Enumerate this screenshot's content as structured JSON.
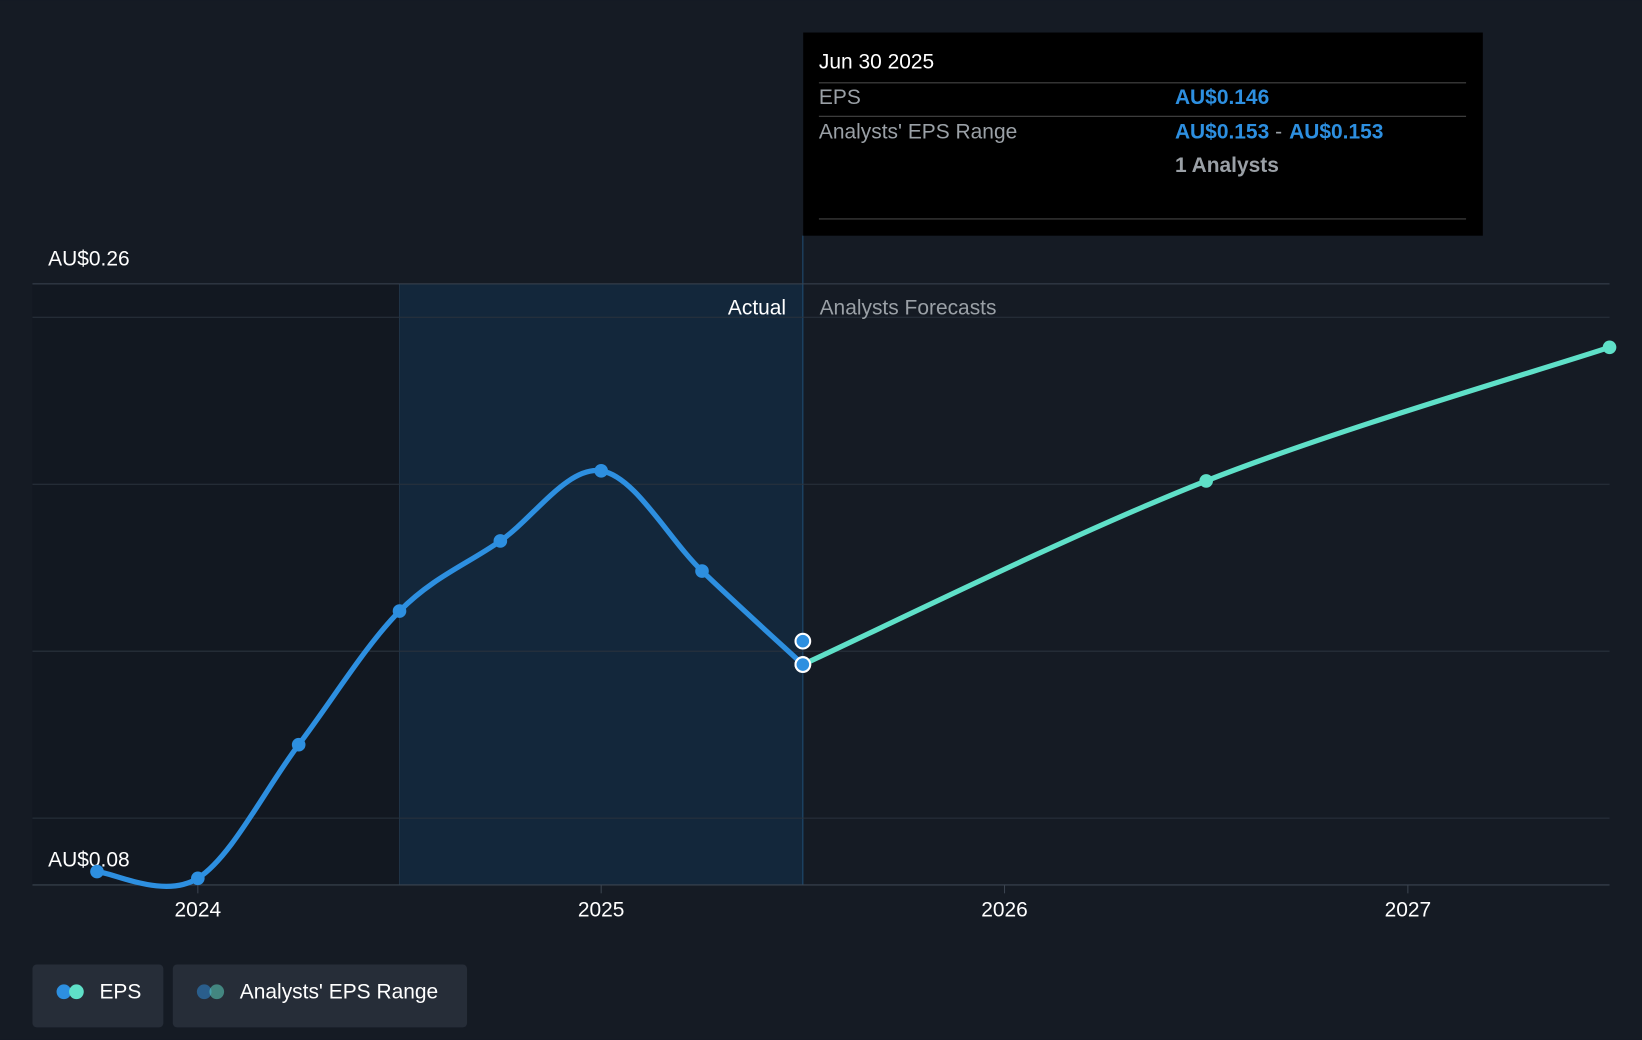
{
  "chart_data": {
    "type": "line",
    "xlim": [
      2023.59,
      2027.5
    ],
    "xticks": [
      2024,
      2025,
      2026,
      2027
    ],
    "ylim": [
      0.08,
      0.26
    ],
    "yticks": [
      {
        "value": 0.26,
        "label": "AU$0.26"
      },
      {
        "value": 0.08,
        "label": "AU$0.08"
      }
    ],
    "gridlines": [
      0.1,
      0.15,
      0.2,
      0.25
    ],
    "actual_span": [
      2024.5,
      2025.5
    ],
    "actual_label": "Actual",
    "forecast_label": "Analysts Forecasts",
    "series": [
      {
        "name": "EPS",
        "color": "#2d8fe0",
        "x": [
          2023.75,
          2024.0,
          2024.25,
          2024.5,
          2024.75,
          2025.0,
          2025.25,
          2025.5
        ],
        "values": [
          0.084,
          0.082,
          0.122,
          0.162,
          0.183,
          0.204,
          0.174,
          0.146
        ]
      },
      {
        "name": "EPS",
        "color": "#5fe0c8",
        "x": [
          2025.5,
          2026.5,
          2027.5
        ],
        "values": [
          0.146,
          0.201,
          0.241
        ]
      },
      {
        "name": "Analysts' EPS Range",
        "color": "#2d8fe0",
        "x": [
          2025.5
        ],
        "values": [
          0.153
        ]
      }
    ],
    "tooltip": {
      "date": "Jun 30 2025",
      "eps_label": "EPS",
      "eps_value": "AU$0.146",
      "range_label": "Analysts' EPS Range",
      "range_low": "AU$0.153",
      "range_sep": "-",
      "range_high": "AU$0.153",
      "analysts": "1 Analysts"
    }
  }
}
